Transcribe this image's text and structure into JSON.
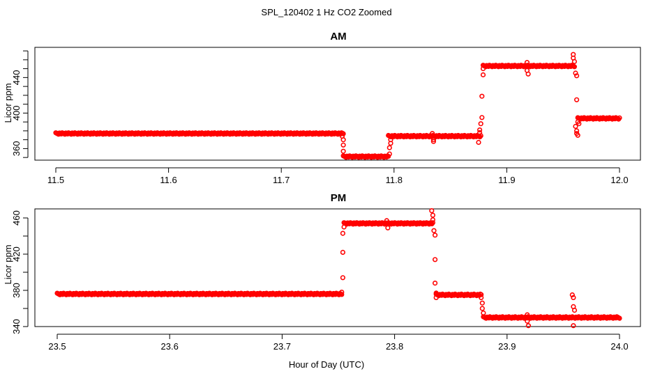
{
  "figure": {
    "title": "SPL_120402  1 Hz CO2 Zoomed",
    "xlabel": "Hour of Day (UTC)"
  },
  "chart_data": [
    {
      "type": "scatter",
      "title": "AM",
      "ylabel": "Licor ppm",
      "xlim": [
        11.5,
        12.0
      ],
      "ylim": [
        347,
        474
      ],
      "xticks": [
        "11.5",
        "11.6",
        "11.7",
        "11.8",
        "11.9",
        "12.0"
      ],
      "xtick_values": [
        11.5,
        11.6,
        11.7,
        11.8,
        11.9,
        12.0
      ],
      "yticks": [
        "360",
        "400",
        "440"
      ],
      "ytick_values": [
        360,
        400,
        440
      ],
      "y_minor_ticks": [
        340,
        350,
        370,
        380,
        390,
        410,
        420,
        430,
        450,
        460,
        470
      ],
      "color": "#ff0000",
      "segments": [
        {
          "x_start": 11.5,
          "x_end": 11.755,
          "y": 377
        },
        {
          "x_start": 11.755,
          "x_end": 11.795,
          "y": 351
        },
        {
          "x_start": 11.795,
          "x_end": 11.877,
          "y": 374
        },
        {
          "x_start": 11.879,
          "x_end": 11.96,
          "y": 453
        },
        {
          "x_start": 11.963,
          "x_end": 12.0,
          "y": 394
        }
      ],
      "points": [
        {
          "x": 11.754,
          "y": 374
        },
        {
          "x": 11.755,
          "y": 370
        },
        {
          "x": 11.755,
          "y": 364
        },
        {
          "x": 11.755,
          "y": 357
        },
        {
          "x": 11.796,
          "y": 354
        },
        {
          "x": 11.796,
          "y": 361
        },
        {
          "x": 11.797,
          "y": 366
        },
        {
          "x": 11.797,
          "y": 370
        },
        {
          "x": 11.834,
          "y": 377
        },
        {
          "x": 11.835,
          "y": 370
        },
        {
          "x": 11.835,
          "y": 368
        },
        {
          "x": 11.875,
          "y": 367
        },
        {
          "x": 11.876,
          "y": 378
        },
        {
          "x": 11.876,
          "y": 381
        },
        {
          "x": 11.877,
          "y": 388
        },
        {
          "x": 11.878,
          "y": 395
        },
        {
          "x": 11.878,
          "y": 419
        },
        {
          "x": 11.879,
          "y": 443
        },
        {
          "x": 11.879,
          "y": 450
        },
        {
          "x": 11.918,
          "y": 457
        },
        {
          "x": 11.918,
          "y": 448
        },
        {
          "x": 11.919,
          "y": 444
        },
        {
          "x": 11.959,
          "y": 466
        },
        {
          "x": 11.959,
          "y": 462
        },
        {
          "x": 11.96,
          "y": 458
        },
        {
          "x": 11.961,
          "y": 445
        },
        {
          "x": 11.962,
          "y": 442
        },
        {
          "x": 11.962,
          "y": 415
        },
        {
          "x": 11.961,
          "y": 385
        },
        {
          "x": 11.962,
          "y": 380
        },
        {
          "x": 11.962,
          "y": 377
        },
        {
          "x": 11.963,
          "y": 375
        },
        {
          "x": 11.963,
          "y": 390
        },
        {
          "x": 11.964,
          "y": 388
        }
      ]
    },
    {
      "type": "scatter",
      "title": "PM",
      "ylabel": "Licor ppm",
      "xlim": [
        23.5,
        24.0
      ],
      "ylim": [
        340,
        470
      ],
      "xticks": [
        "23.5",
        "23.6",
        "23.7",
        "23.8",
        "23.9",
        "24.0"
      ],
      "xtick_values": [
        23.5,
        23.6,
        23.7,
        23.8,
        23.9,
        24.0
      ],
      "yticks": [
        "340",
        "380",
        "420",
        "460"
      ],
      "ytick_values": [
        340,
        380,
        420,
        460
      ],
      "y_minor_ticks": [
        360,
        400,
        440
      ],
      "color": "#ff0000",
      "segments": [
        {
          "x_start": 23.5,
          "x_end": 23.753,
          "y": 376
        },
        {
          "x_start": 23.755,
          "x_end": 23.834,
          "y": 454
        },
        {
          "x_start": 23.837,
          "x_end": 23.877,
          "y": 375
        },
        {
          "x_start": 23.879,
          "x_end": 24.0,
          "y": 350
        }
      ],
      "points": [
        {
          "x": 23.753,
          "y": 378
        },
        {
          "x": 23.754,
          "y": 394
        },
        {
          "x": 23.754,
          "y": 422
        },
        {
          "x": 23.754,
          "y": 443
        },
        {
          "x": 23.755,
          "y": 450
        },
        {
          "x": 23.793,
          "y": 457
        },
        {
          "x": 23.794,
          "y": 449
        },
        {
          "x": 23.833,
          "y": 468
        },
        {
          "x": 23.834,
          "y": 463
        },
        {
          "x": 23.834,
          "y": 458
        },
        {
          "x": 23.835,
          "y": 446
        },
        {
          "x": 23.836,
          "y": 441
        },
        {
          "x": 23.836,
          "y": 414
        },
        {
          "x": 23.836,
          "y": 388
        },
        {
          "x": 23.837,
          "y": 377
        },
        {
          "x": 23.837,
          "y": 372
        },
        {
          "x": 23.877,
          "y": 372
        },
        {
          "x": 23.878,
          "y": 366
        },
        {
          "x": 23.878,
          "y": 360
        },
        {
          "x": 23.879,
          "y": 355
        },
        {
          "x": 23.918,
          "y": 353
        },
        {
          "x": 23.918,
          "y": 346
        },
        {
          "x": 23.919,
          "y": 341
        },
        {
          "x": 23.958,
          "y": 375
        },
        {
          "x": 23.959,
          "y": 372
        },
        {
          "x": 23.959,
          "y": 362
        },
        {
          "x": 23.959,
          "y": 341
        },
        {
          "x": 23.96,
          "y": 358
        }
      ]
    }
  ]
}
